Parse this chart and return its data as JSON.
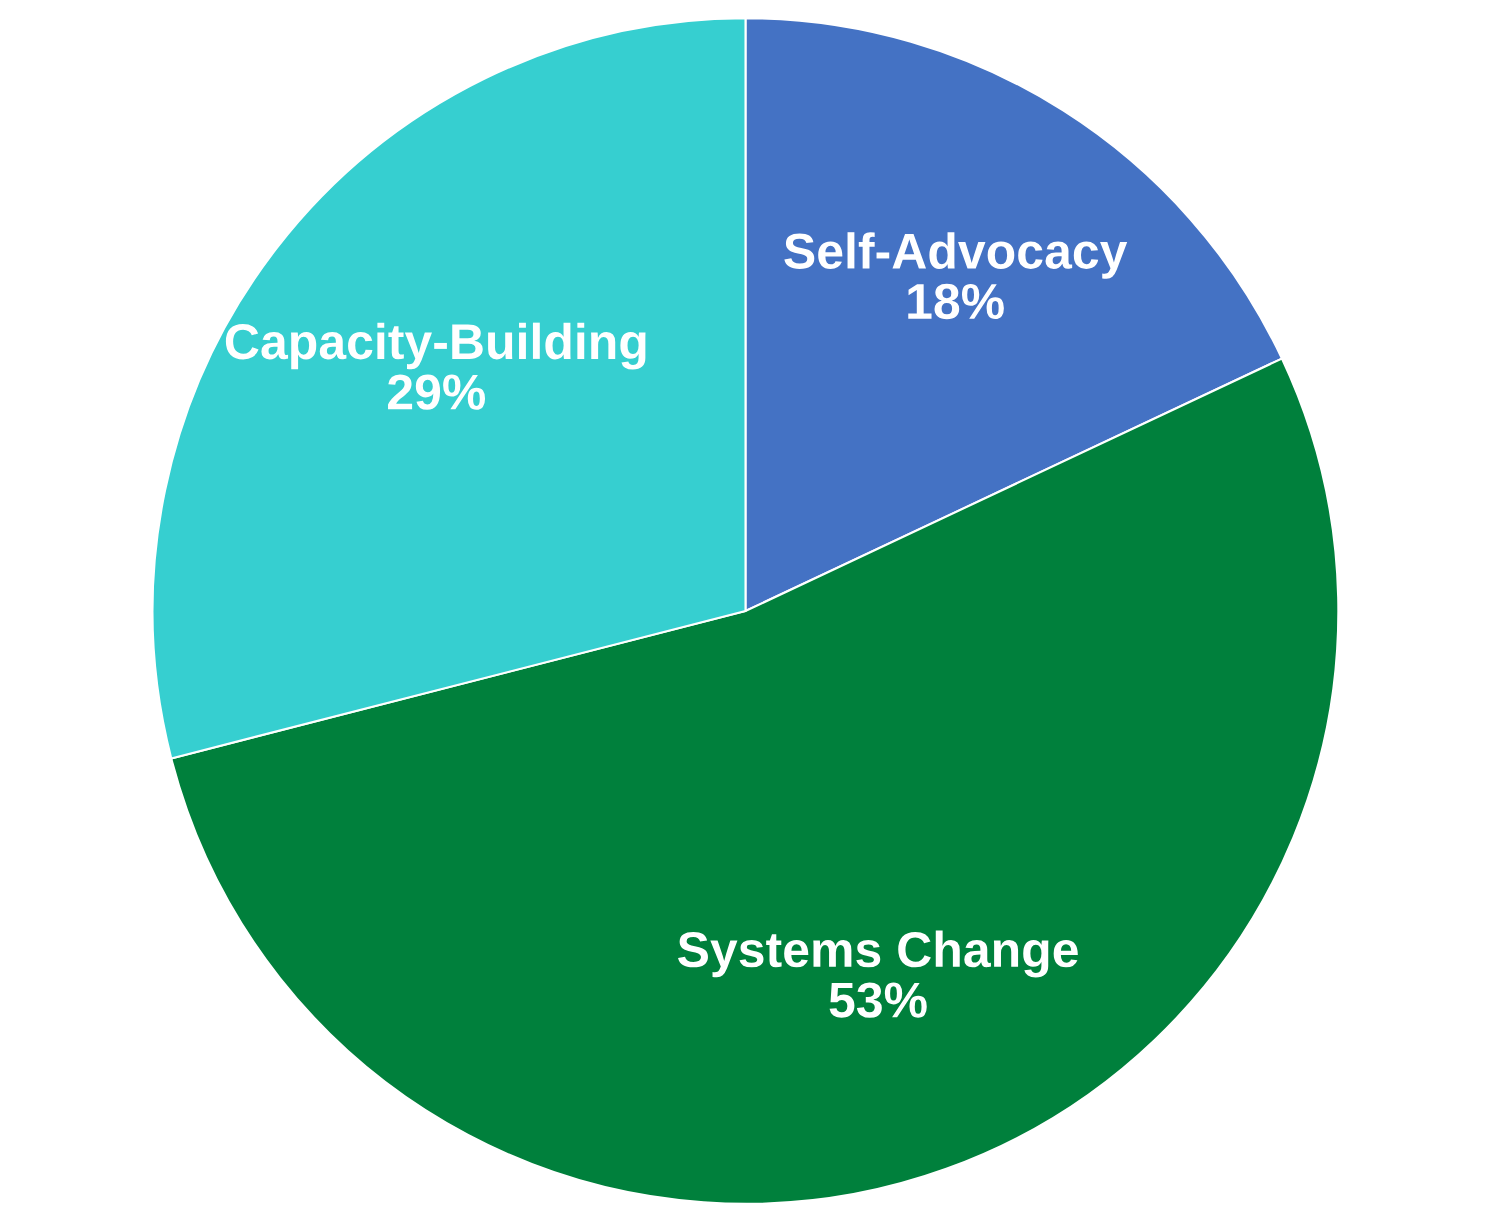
{
  "chart_data": {
    "type": "pie",
    "categories": [
      "Self-Advocacy",
      "Systems Change",
      "Capacity-Building"
    ],
    "values": [
      18,
      53,
      29
    ],
    "colors": [
      "#4472c4",
      "#00803c",
      "#36cfd0"
    ],
    "value_labels": [
      "18%",
      "53%",
      "29%"
    ],
    "legend": false
  }
}
